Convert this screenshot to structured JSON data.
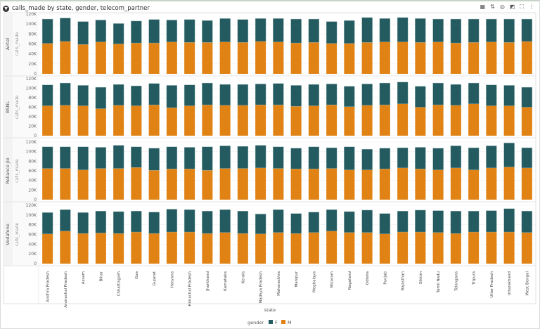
{
  "header": {
    "title": "calls_made by state, gender, telecom_partner"
  },
  "toolbar": [
    {
      "name": "grid-icon",
      "glyph": "▦"
    },
    {
      "name": "sort-icon",
      "glyph": "⇅"
    },
    {
      "name": "target-icon",
      "glyph": "◎"
    },
    {
      "name": "chart-type-icon",
      "glyph": "◩"
    },
    {
      "name": "fullscreen-icon",
      "glyph": "⛶"
    },
    {
      "name": "more-icon",
      "glyph": "⋮"
    }
  ],
  "colors": {
    "F": "#235b61",
    "M": "#e08214"
  },
  "chart_data": {
    "type": "bar",
    "stacked": true,
    "title": "calls_made by state, gender, telecom_partner",
    "xlabel": "state",
    "ylabel": "calls_made",
    "ylim": [
      0,
      120000
    ],
    "yticks": [
      "0",
      "20K",
      "40K",
      "60K",
      "80K",
      "100K",
      "120K"
    ],
    "legend": {
      "title": "gender",
      "entries": [
        "F",
        "M"
      ],
      "placement": "bottom"
    },
    "categories": [
      "Andhra Pradesh",
      "Arunachal Pradesh",
      "Assam",
      "Bihar",
      "Chhattisgarh",
      "Goa",
      "Gujarat",
      "Haryana",
      "Himachal Pradesh",
      "Jharkhand",
      "Karnataka",
      "Kerala",
      "Madhya Pradesh",
      "Maharashtra",
      "Manipur",
      "Meghalaya",
      "Mizoram",
      "Nagaland",
      "Odisha",
      "Punjab",
      "Rajasthan",
      "Sikkim",
      "Tamil Nadu",
      "Telangana",
      "Tripura",
      "Uttar Pradesh",
      "Uttarakhand",
      "West Bengal"
    ],
    "facets": [
      {
        "name": "Airtel",
        "M": [
          61000,
          65000,
          59000,
          64000,
          60000,
          62000,
          62000,
          64000,
          63000,
          63000,
          64000,
          63000,
          65000,
          64000,
          62000,
          63000,
          61000,
          61000,
          63000,
          64000,
          64000,
          63000,
          64000,
          62000,
          63000,
          64000,
          63000,
          65000
        ],
        "F": [
          49000,
          47000,
          46000,
          44000,
          41000,
          44000,
          47000,
          44000,
          46000,
          44000,
          47000,
          46000,
          46000,
          47000,
          48000,
          47000,
          44000,
          46000,
          50000,
          47000,
          49000,
          48000,
          46000,
          48000,
          47000,
          46000,
          47000,
          45000
        ]
      },
      {
        "name": "BSNL",
        "M": [
          63000,
          64000,
          63000,
          57000,
          64000,
          63000,
          65000,
          59000,
          63000,
          65000,
          64000,
          64000,
          65000,
          65000,
          62000,
          63000,
          65000,
          61000,
          64000,
          65000,
          67000,
          60000,
          65000,
          64000,
          67000,
          63000,
          63000,
          60000
        ],
        "F": [
          44000,
          47000,
          43000,
          45000,
          44000,
          42000,
          45000,
          47000,
          44000,
          46000,
          44000,
          44000,
          44000,
          45000,
          44000,
          45000,
          44000,
          43000,
          45000,
          46000,
          46000,
          44000,
          46000,
          44000,
          44000,
          44000,
          43000,
          42000
        ]
      },
      {
        "name": "Reliance Jio",
        "M": [
          65000,
          65000,
          62000,
          65000,
          65000,
          67000,
          61000,
          64000,
          64000,
          61000,
          65000,
          65000,
          66000,
          65000,
          64000,
          64000,
          65000,
          62000,
          62000,
          64000,
          66000,
          64000,
          62000,
          66000,
          62000,
          66000,
          68000,
          66000
        ],
        "F": [
          45000,
          45000,
          48000,
          44000,
          48000,
          43000,
          46000,
          46000,
          45000,
          49000,
          47000,
          46000,
          47000,
          45000,
          43000,
          46000,
          43000,
          48000,
          43000,
          43000,
          42000,
          45000,
          45000,
          46000,
          46000,
          46000,
          50000,
          42000
        ]
      },
      {
        "name": "Vodafone",
        "M": [
          61000,
          67000,
          62000,
          63000,
          62000,
          65000,
          62000,
          65000,
          65000,
          62000,
          64000,
          62000,
          61000,
          64000,
          62000,
          64000,
          67000,
          64000,
          64000,
          61000,
          65000,
          65000,
          64000,
          62000,
          65000,
          65000,
          65000,
          64000
        ],
        "F": [
          44000,
          44000,
          43000,
          45000,
          45000,
          43000,
          44000,
          47000,
          46000,
          46000,
          47000,
          46000,
          41000,
          47000,
          41000,
          42000,
          44000,
          43000,
          46000,
          42000,
          43000,
          45000,
          45000,
          46000,
          43000,
          44000,
          48000,
          44000
        ]
      }
    ]
  }
}
